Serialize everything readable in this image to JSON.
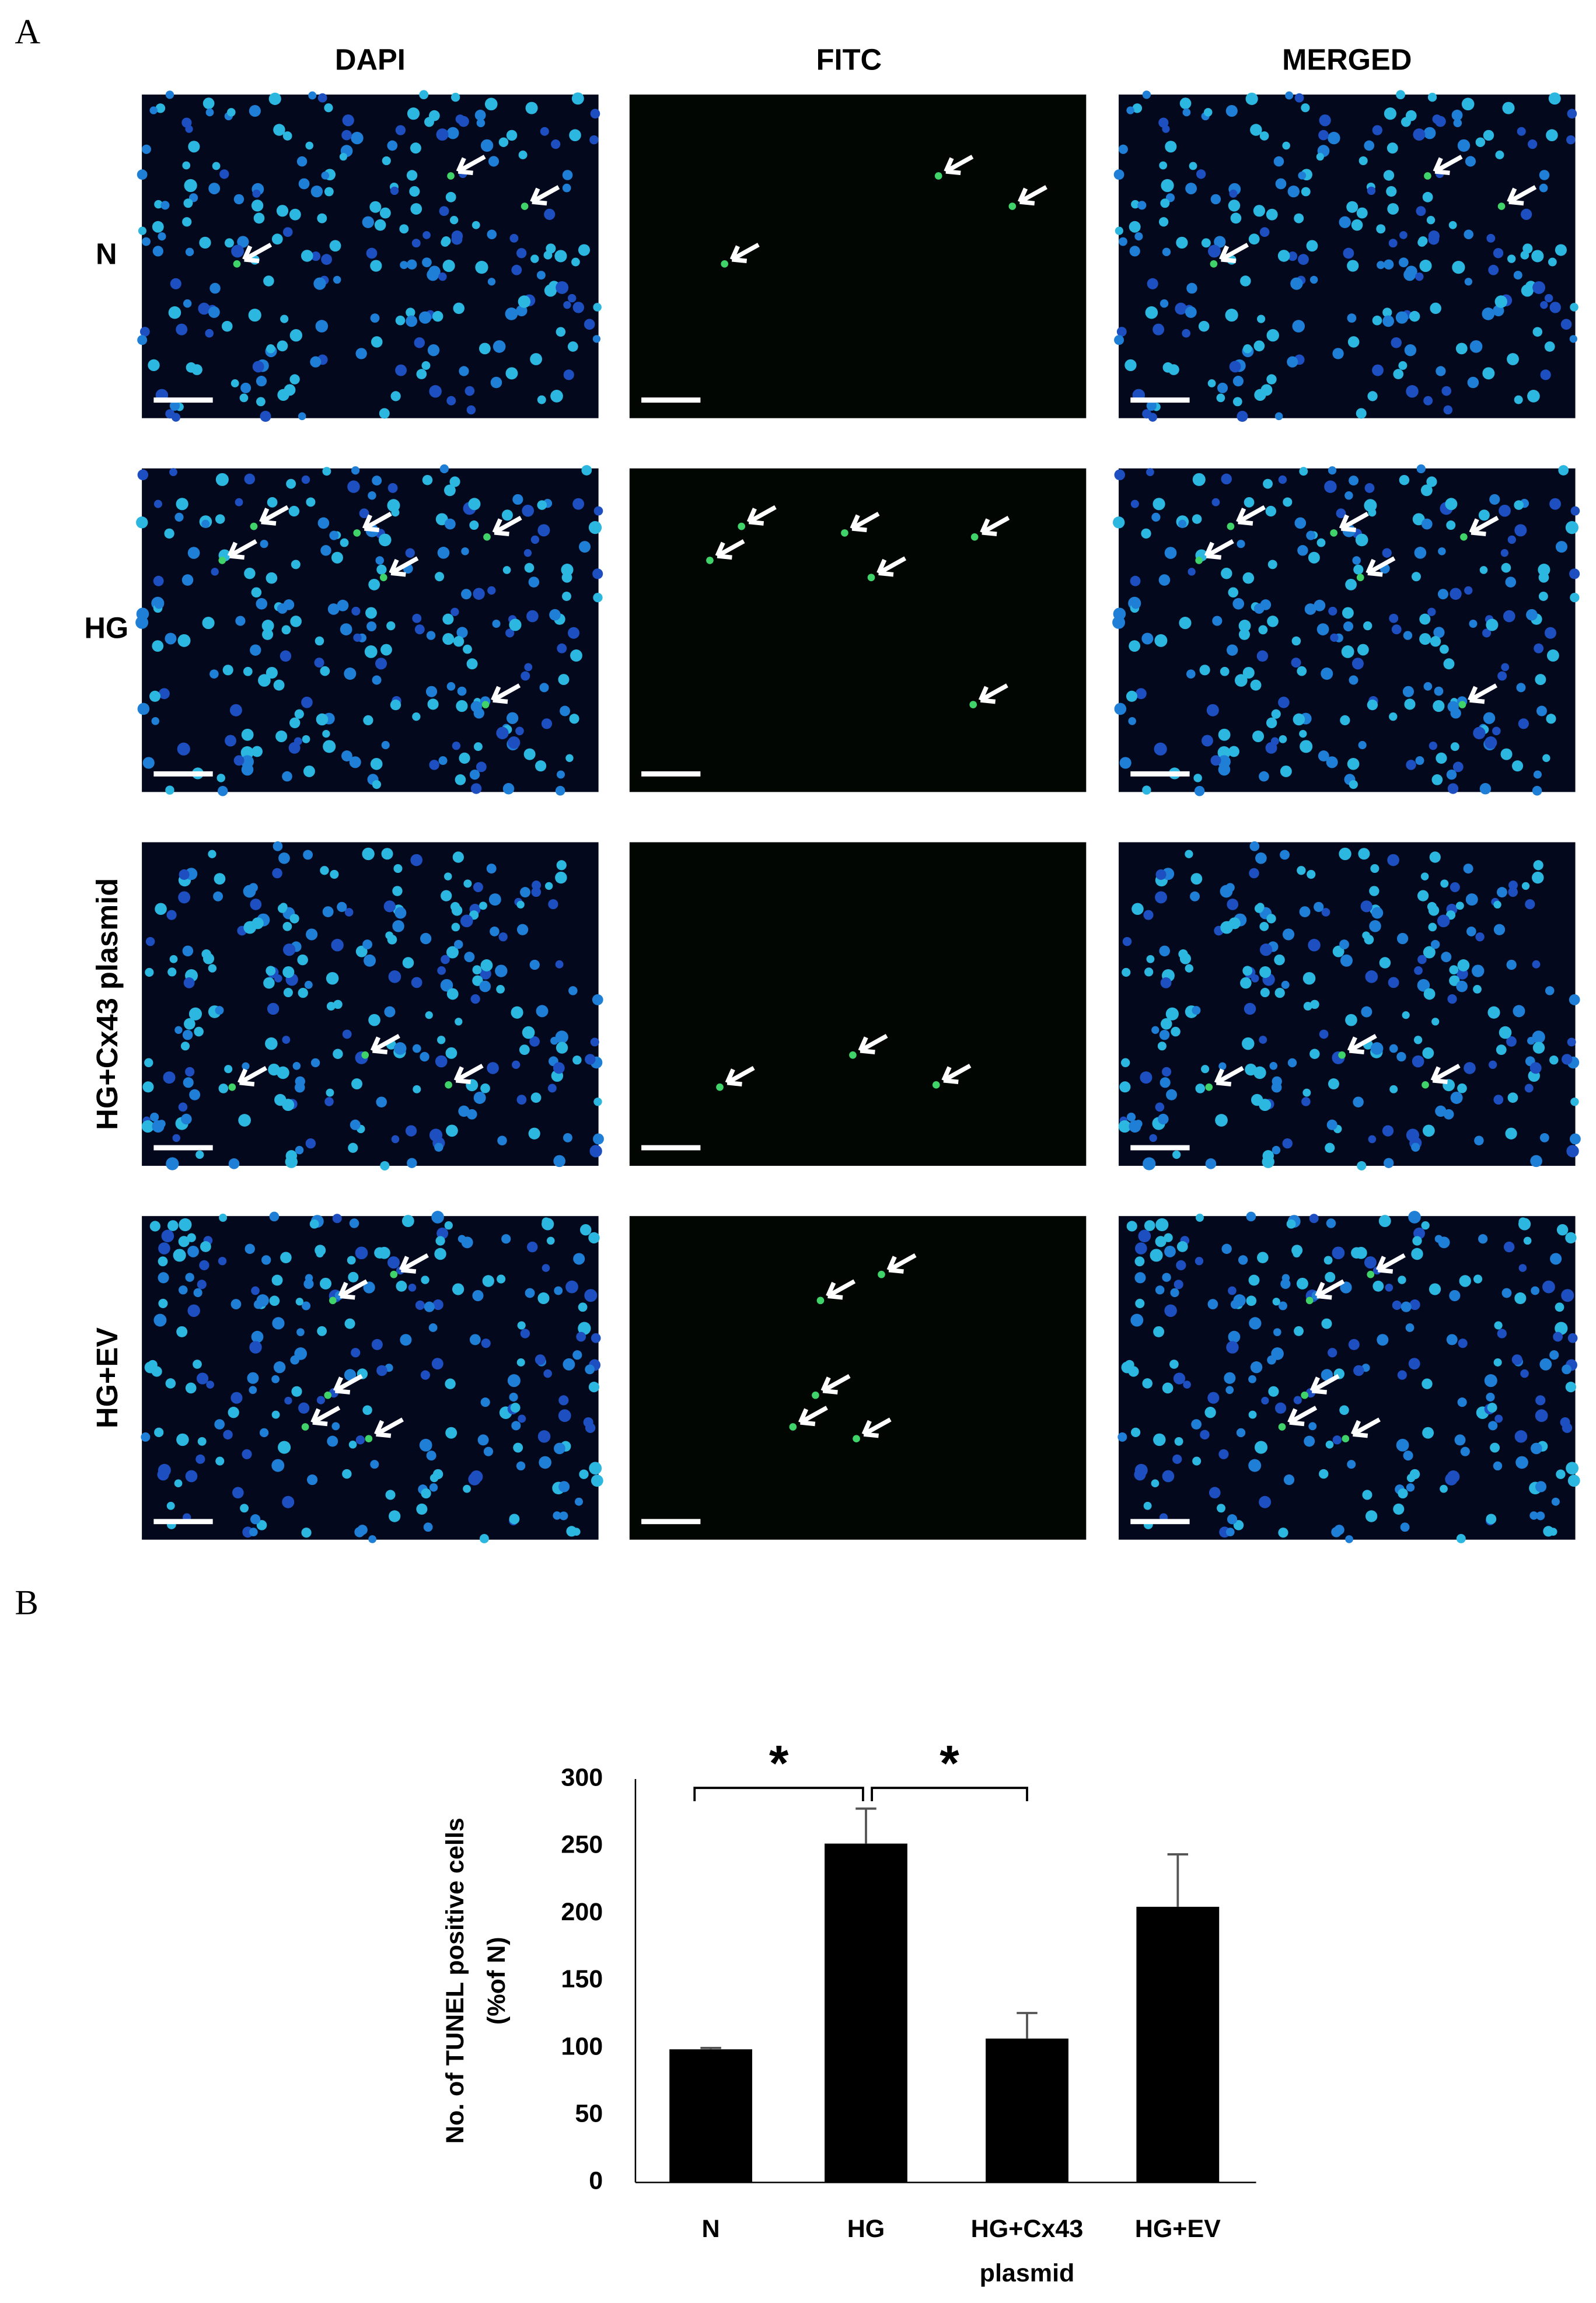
{
  "panel_a": {
    "label": "A",
    "columns": [
      "DAPI",
      "FITC",
      "MERGED"
    ],
    "rows": [
      "N",
      "HG",
      "HG+Cx43 plasmid",
      "HG+EV"
    ]
  },
  "panel_b": {
    "label": "B"
  },
  "chart_data": {
    "type": "bar",
    "ylabel": [
      "No. of TUNEL positive cells",
      "(%of N)"
    ],
    "categories": [
      "N",
      "HG",
      "HG+Cx43 plasmid",
      "HG+EV"
    ],
    "values": [
      99,
      252,
      107,
      205
    ],
    "errors": [
      1,
      26,
      19,
      39
    ],
    "color": "#000000",
    "ylim": [
      0,
      300
    ],
    "yticks": [
      0,
      50,
      100,
      150,
      200,
      250,
      300
    ],
    "significance": [
      {
        "from": 0,
        "to": 1,
        "label": "*"
      },
      {
        "from": 1,
        "to": 2,
        "label": "*"
      }
    ]
  }
}
